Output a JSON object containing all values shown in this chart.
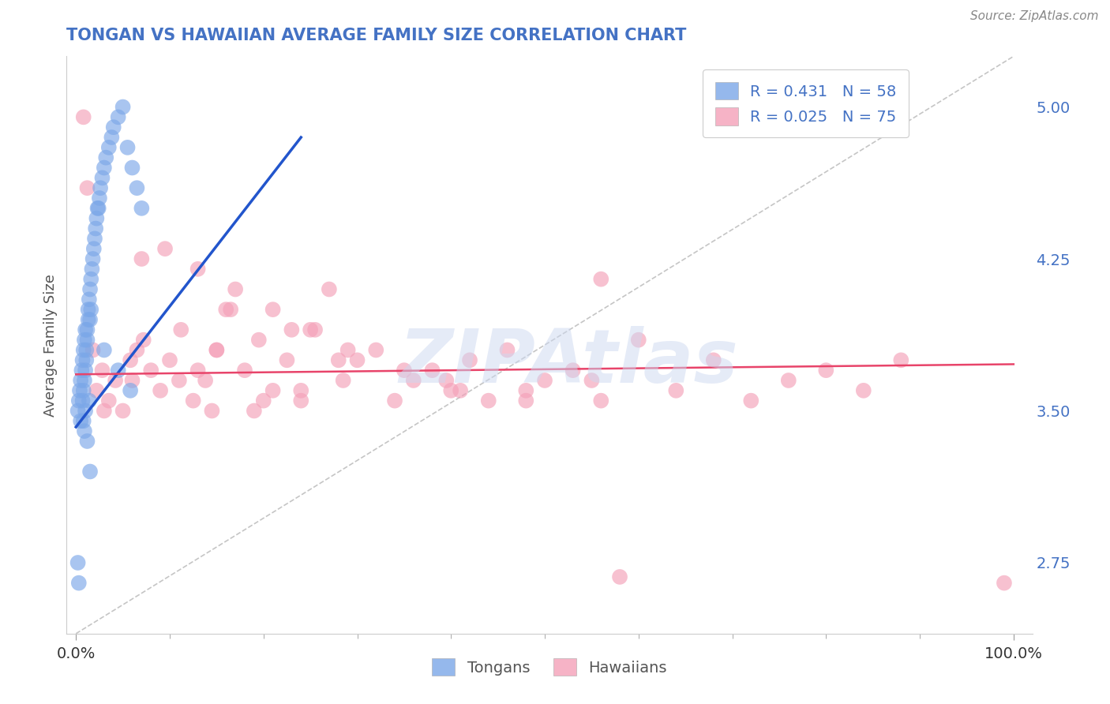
{
  "title": "TONGAN VS HAWAIIAN AVERAGE FAMILY SIZE CORRELATION CHART",
  "title_color": "#4472c4",
  "source_text": "Source: ZipAtlas.com",
  "ylabel": "Average Family Size",
  "watermark": "ZIPAtlas",
  "right_ytick_color": "#4472c4",
  "right_ytick_labels": [
    "2.75",
    "3.50",
    "4.25",
    "5.00"
  ],
  "right_ytick_vals": [
    2.75,
    3.5,
    4.25,
    5.0
  ],
  "ylim": [
    2.4,
    5.25
  ],
  "xlim": [
    -0.01,
    1.02
  ],
  "tongan_R": 0.431,
  "tongan_N": 58,
  "hawaiian_R": 0.025,
  "hawaiian_N": 75,
  "tongan_color": "#7ba7e8",
  "hawaiian_color": "#f4a0b8",
  "trend_blue": "#2255cc",
  "trend_pink": "#e8446a",
  "ref_line_color": "#bbbbbb",
  "legend_text_color": "#4472c4",
  "background_color": "#ffffff",
  "grid_color": "#d0d0d0",
  "xtick_vals": [
    0.0,
    1.0
  ],
  "xtick_labels": [
    "0.0%",
    "100.0%"
  ],
  "tongan_x": [
    0.002,
    0.003,
    0.004,
    0.005,
    0.005,
    0.006,
    0.007,
    0.007,
    0.008,
    0.008,
    0.009,
    0.009,
    0.01,
    0.01,
    0.011,
    0.011,
    0.012,
    0.012,
    0.013,
    0.013,
    0.014,
    0.015,
    0.015,
    0.016,
    0.016,
    0.017,
    0.018,
    0.019,
    0.02,
    0.021,
    0.022,
    0.023,
    0.024,
    0.025,
    0.026,
    0.028,
    0.03,
    0.032,
    0.035,
    0.038,
    0.04,
    0.045,
    0.05,
    0.055,
    0.06,
    0.065,
    0.07,
    0.008,
    0.009,
    0.01,
    0.012,
    0.014,
    0.03,
    0.045,
    0.058,
    0.002,
    0.003,
    0.015
  ],
  "tongan_y": [
    3.5,
    3.55,
    3.6,
    3.65,
    3.45,
    3.7,
    3.55,
    3.75,
    3.8,
    3.6,
    3.85,
    3.65,
    3.9,
    3.7,
    3.75,
    3.8,
    3.85,
    3.9,
    3.95,
    4.0,
    4.05,
    4.1,
    3.95,
    4.15,
    4.0,
    4.2,
    4.25,
    4.3,
    4.35,
    4.4,
    4.45,
    4.5,
    4.5,
    4.55,
    4.6,
    4.65,
    4.7,
    4.75,
    4.8,
    4.85,
    4.9,
    4.95,
    5.0,
    4.8,
    4.7,
    4.6,
    4.5,
    3.45,
    3.4,
    3.5,
    3.35,
    3.55,
    3.8,
    3.7,
    3.6,
    2.75,
    2.65,
    3.2
  ],
  "hawaiian_x": [
    0.008,
    0.012,
    0.018,
    0.022,
    0.028,
    0.035,
    0.042,
    0.05,
    0.058,
    0.065,
    0.072,
    0.08,
    0.09,
    0.1,
    0.112,
    0.125,
    0.138,
    0.15,
    0.165,
    0.18,
    0.195,
    0.21,
    0.225,
    0.24,
    0.255,
    0.27,
    0.285,
    0.3,
    0.32,
    0.34,
    0.36,
    0.38,
    0.4,
    0.42,
    0.44,
    0.46,
    0.48,
    0.5,
    0.53,
    0.56,
    0.6,
    0.64,
    0.68,
    0.72,
    0.76,
    0.8,
    0.84,
    0.88,
    0.03,
    0.06,
    0.095,
    0.13,
    0.17,
    0.21,
    0.25,
    0.29,
    0.35,
    0.41,
    0.48,
    0.55,
    0.13,
    0.16,
    0.2,
    0.24,
    0.28,
    0.07,
    0.11,
    0.15,
    0.19,
    0.23,
    0.56,
    0.99,
    0.145,
    0.395,
    0.58
  ],
  "hawaiian_y": [
    4.95,
    4.6,
    3.8,
    3.6,
    3.7,
    3.55,
    3.65,
    3.5,
    3.75,
    3.8,
    3.85,
    3.7,
    3.6,
    3.75,
    3.9,
    3.55,
    3.65,
    3.8,
    4.0,
    3.7,
    3.85,
    3.6,
    3.75,
    3.55,
    3.9,
    4.1,
    3.65,
    3.75,
    3.8,
    3.55,
    3.65,
    3.7,
    3.6,
    3.75,
    3.55,
    3.8,
    3.6,
    3.65,
    3.7,
    3.55,
    3.85,
    3.6,
    3.75,
    3.55,
    3.65,
    3.7,
    3.6,
    3.75,
    3.5,
    3.65,
    4.3,
    4.2,
    4.1,
    4.0,
    3.9,
    3.8,
    3.7,
    3.6,
    3.55,
    3.65,
    3.7,
    4.0,
    3.55,
    3.6,
    3.75,
    4.25,
    3.65,
    3.8,
    3.5,
    3.9,
    4.15,
    2.65,
    3.5,
    3.65,
    2.68
  ],
  "blue_trendline_x": [
    0.0,
    0.24
  ],
  "blue_trendline_y": [
    3.42,
    4.85
  ],
  "pink_trendline_x": [
    0.0,
    1.0
  ],
  "pink_trendline_y": [
    3.68,
    3.73
  ],
  "ref_line_x": [
    0.0,
    1.0
  ],
  "ref_line_y": [
    2.4,
    5.25
  ]
}
